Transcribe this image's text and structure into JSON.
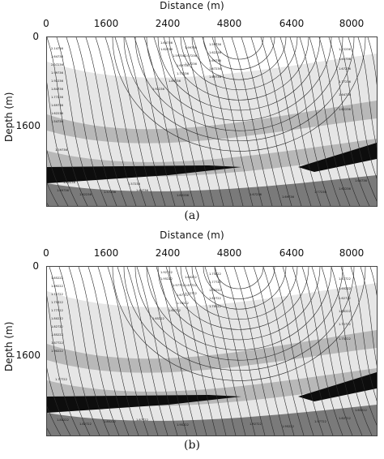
{
  "figure": {
    "panels": [
      {
        "id": "a",
        "caption": "(a)",
        "xlabel": "Distance (m)",
        "ylabel": "Depth (m)",
        "xticks": [
          "0",
          "1600",
          "2400",
          "4800",
          "6400",
          "8000"
        ],
        "yticks": [
          "0",
          "1600"
        ],
        "contour_labels": [
          "2.14736",
          "1.64736",
          "2.07236",
          "1.99736",
          "1.92236",
          "1.84736",
          "1.77236",
          "1.69736",
          "1.62236",
          "1.54736",
          "1.64736",
          "1.62236",
          "1.59736",
          "1.69736",
          "1.77236",
          "1.84736",
          "1.92236",
          "1.99736",
          "2.07236",
          "1.57236",
          "1.59736",
          "1.62236",
          "1.64736",
          "1.67236",
          "1.69736",
          "1.72236",
          "1.64736",
          "1.67236",
          "1.77236",
          "1.64736",
          "1.62236",
          "1.59736",
          "1.69736",
          "1.62236",
          "1.57236",
          "1.64736",
          "1.62236",
          "1.67236",
          "1.69736",
          "1.77236",
          "1.62236",
          "1.64736",
          "1.82236",
          "1.59736",
          "1.57236"
        ]
      },
      {
        "id": "b",
        "caption": "(b)",
        "xlabel": "Distance (m)",
        "ylabel": "Depth (m)",
        "xticks": [
          "0",
          "1600",
          "2400",
          "4800",
          "6400",
          "8000"
        ],
        "yticks": [
          "0",
          "1600"
        ],
        "contour_labels": [
          "1.65222",
          "1.69222",
          "1.72722",
          "1.75222",
          "1.77722",
          "1.80222",
          "1.82722",
          "1.85222",
          "1.87722",
          "1.90222",
          "1.92722",
          "1.95222",
          "1.97722",
          "1.67722",
          "1.70222",
          "1.62722",
          "1.65222",
          "1.60222",
          "1.67722",
          "1.72722",
          "1.75222",
          "1.77722",
          "1.80222",
          "1.82722",
          "1.70222",
          "1.67722",
          "1.65222",
          "1.62722",
          "1.60222",
          "1.72722",
          "1.75222",
          "1.77722",
          "1.80222",
          "1.82722",
          "1.85222",
          "1.87722",
          "1.90222",
          "1.92722",
          "1.95222",
          "1.97722",
          "1.62722",
          "1.65222"
        ]
      }
    ]
  },
  "colors": {
    "background": "#ffffff",
    "layer_light": "#e6e6e6",
    "layer_mid": "#b8b8b8",
    "layer_dark": "#7a7a7a",
    "layer_black": "#0d0d0d",
    "contour": "#2a2a2a"
  }
}
